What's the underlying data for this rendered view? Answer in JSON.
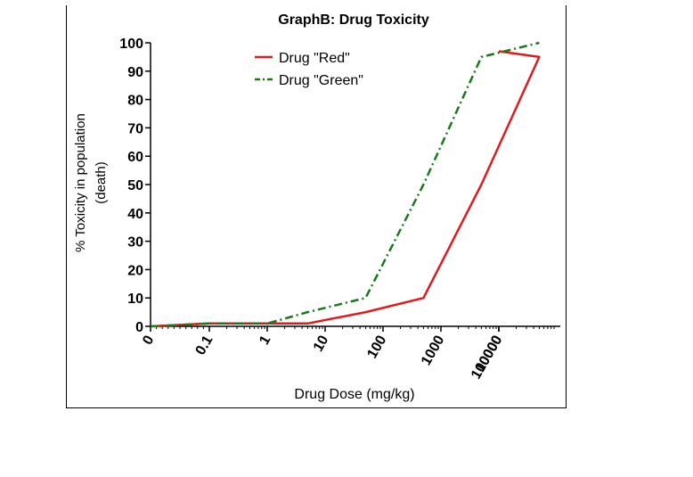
{
  "chart_data": {
    "type": "line",
    "title": "GraphB: Drug Toxicity",
    "xlabel": "Drug Dose (mg/kg)",
    "ylabel_line1": "%  Toxicity in population",
    "ylabel_line2": "(death)",
    "x_scale": "log",
    "x_ticks": [
      "0",
      "0.1",
      "1",
      "10",
      "100",
      "1000",
      "10000",
      "100000"
    ],
    "x_tick_values": [
      0,
      0.1,
      1,
      10,
      100,
      1000,
      10000,
      100000
    ],
    "y_ticks": [
      "0",
      "10",
      "20",
      "30",
      "40",
      "50",
      "60",
      "70",
      "80",
      "90",
      "100"
    ],
    "ylim": [
      0,
      100
    ],
    "legend_position": "top-left",
    "grid": false,
    "series": [
      {
        "name": "Drug \"Red\"",
        "color": "#e31a1c",
        "style": "solid",
        "x": [
          0,
          0.1,
          1,
          5,
          50,
          500,
          5000,
          50000,
          100000
        ],
        "y": [
          0,
          1,
          1,
          1,
          5,
          10,
          50,
          95,
          97
        ]
      },
      {
        "name": "Drug \"Green\"",
        "color": "#1a7a1a",
        "style": "dash-dot",
        "x": [
          0,
          0.1,
          1,
          5,
          50,
          500,
          5000,
          50000
        ],
        "y": [
          0,
          1,
          1,
          5,
          10,
          50,
          95,
          100
        ]
      }
    ]
  }
}
